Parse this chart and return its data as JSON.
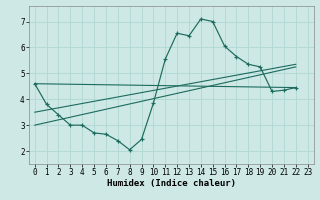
{
  "xlabel": "Humidex (Indice chaleur)",
  "bg_color": "#cde8e5",
  "line_color": "#1c6b5e",
  "grid_color": "#b0d8d4",
  "xlim": [
    -0.5,
    23.5
  ],
  "ylim": [
    1.5,
    7.6
  ],
  "xticks": [
    0,
    1,
    2,
    3,
    4,
    5,
    6,
    7,
    8,
    9,
    10,
    11,
    12,
    13,
    14,
    15,
    16,
    17,
    18,
    19,
    20,
    21,
    22,
    23
  ],
  "yticks": [
    2,
    3,
    4,
    5,
    6,
    7
  ],
  "main_x": [
    0,
    1,
    2,
    3,
    4,
    5,
    6,
    7,
    8,
    9,
    10,
    11,
    12,
    13,
    14,
    15,
    16,
    17,
    18,
    19,
    20,
    21,
    22
  ],
  "main_y": [
    4.6,
    3.8,
    3.4,
    3.0,
    3.0,
    2.7,
    2.65,
    2.4,
    2.05,
    2.45,
    3.85,
    5.55,
    6.55,
    6.45,
    7.1,
    7.0,
    6.05,
    5.65,
    5.35,
    5.25,
    4.3,
    4.35,
    4.45
  ],
  "line1_x": [
    0,
    22
  ],
  "line1_y": [
    4.6,
    4.45
  ],
  "line2_x": [
    0,
    22
  ],
  "line2_y": [
    3.5,
    5.35
  ],
  "line3_x": [
    0,
    22
  ],
  "line3_y": [
    3.0,
    5.25
  ]
}
